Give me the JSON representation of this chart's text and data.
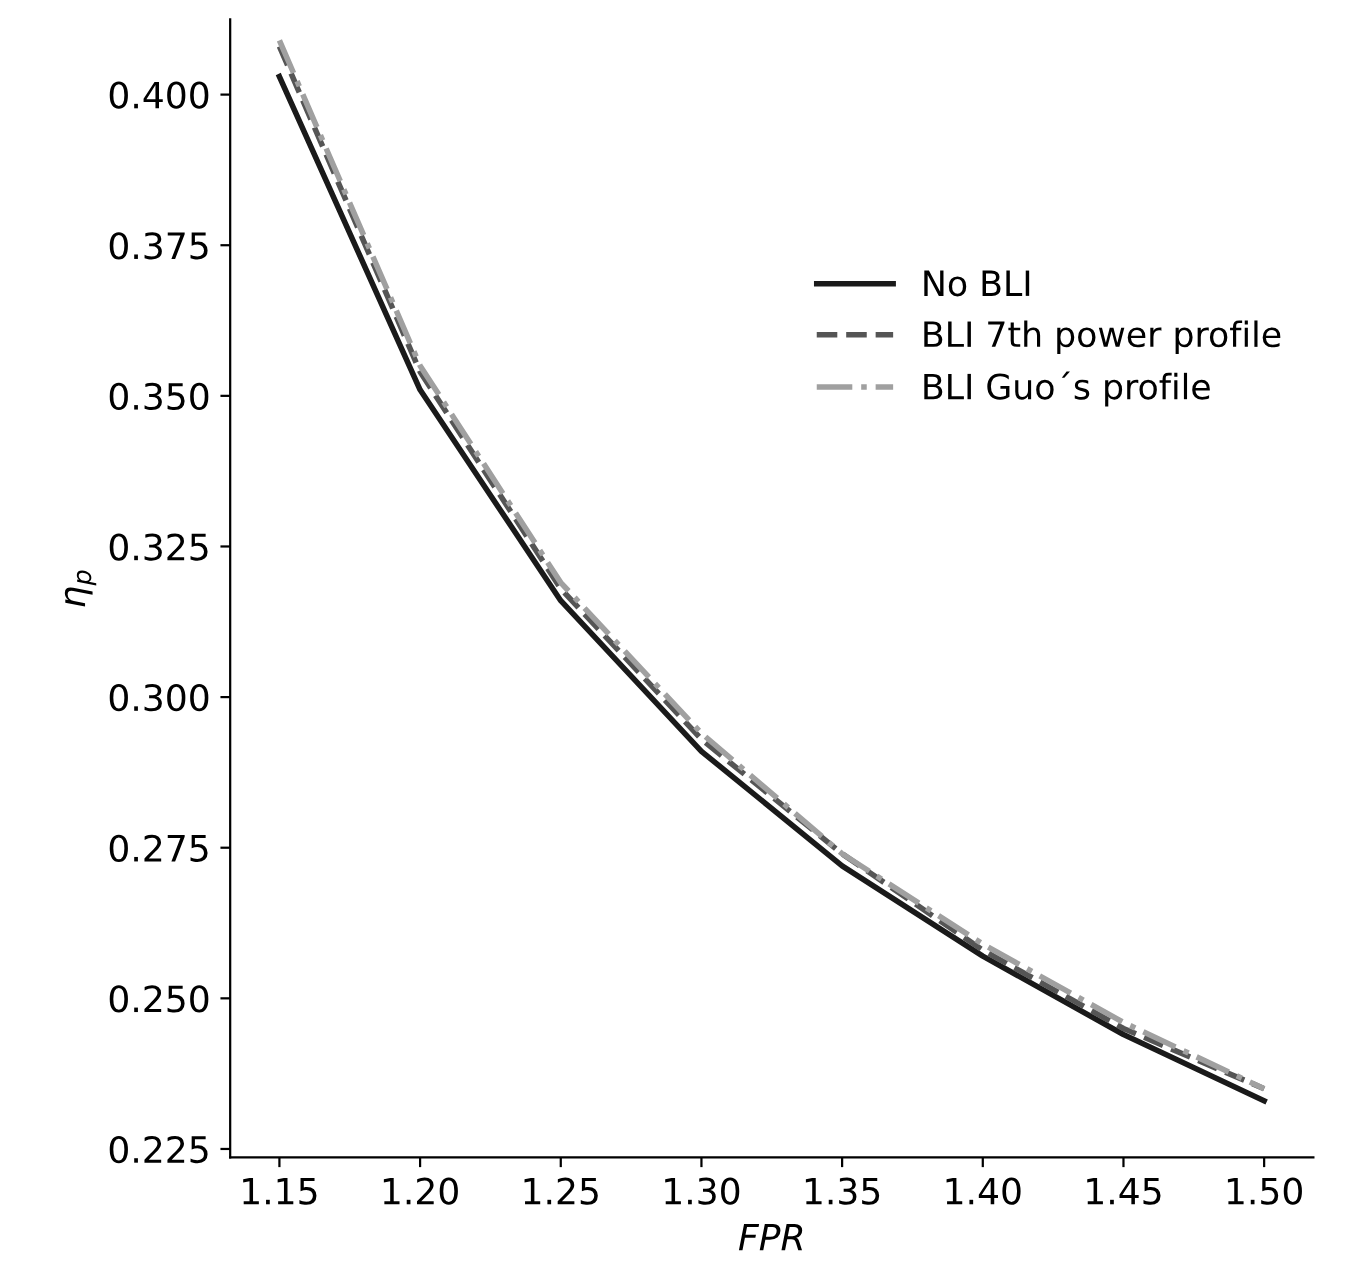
{
  "chart_data": {
    "type": "line",
    "xlabel": "FPR",
    "ylabel": "η$_{p}$",
    "x": [
      1.15,
      1.2,
      1.25,
      1.3,
      1.35,
      1.4,
      1.45,
      1.5
    ],
    "series": [
      {
        "name": "No BLI",
        "color": "#1a1a1a",
        "line_style": "solid",
        "values": [
          0.403,
          0.351,
          0.316,
          0.291,
          0.272,
          0.257,
          0.244,
          0.233
        ]
      },
      {
        "name": "BLI 7th power profile",
        "color": "#555555",
        "line_style": "dashed",
        "values": [
          0.408,
          0.354,
          0.318,
          0.293,
          0.274,
          0.258,
          0.245,
          0.235
        ]
      },
      {
        "name": "BLI Guo´s profile",
        "color": "#a0a0a0",
        "line_style": "dashdot",
        "values": [
          0.409,
          0.355,
          0.319,
          0.294,
          0.274,
          0.259,
          0.246,
          0.235
        ]
      }
    ],
    "xlim": [
      1.1325,
      1.5175
    ],
    "ylim": [
      0.2236,
      0.4125
    ],
    "xticks": [
      1.15,
      {
        "value": 1.2,
        "label": "1.20"
      },
      1.25,
      {
        "value": 1.3,
        "label": "1.30"
      },
      1.35,
      {
        "value": 1.4,
        "label": "1.40"
      },
      1.45,
      {
        "value": 1.5,
        "label": "1.50"
      }
    ],
    "yticks": [
      {
        "value": 0.225,
        "label": "0.225"
      },
      {
        "value": 0.25,
        "label": "0.250"
      },
      {
        "value": 0.275,
        "label": "0.275"
      },
      {
        "value": 0.3,
        "label": "0.300"
      },
      {
        "value": 0.325,
        "label": "0.325"
      },
      {
        "value": 0.35,
        "label": "0.350"
      },
      {
        "value": 0.375,
        "label": "0.375"
      },
      {
        "value": 0.4,
        "label": "0.400"
      }
    ],
    "legend": "right",
    "grid": false,
    "marker": "none"
  }
}
